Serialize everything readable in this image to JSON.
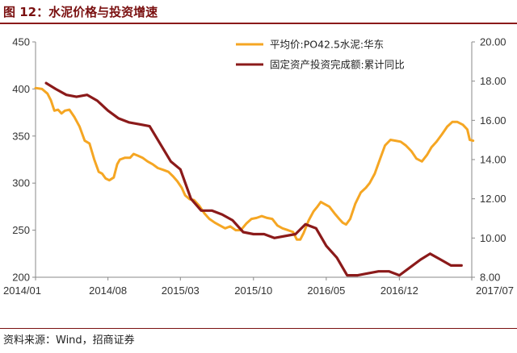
{
  "header": {
    "title": "图 12：水泥价格与投资增速"
  },
  "footer": {
    "source": "资料来源：Wind，招商证券"
  },
  "chart_data": {
    "type": "line",
    "left_axis": {
      "min": 200,
      "max": 450,
      "ticks": [
        "200",
        "250",
        "300",
        "350",
        "400",
        "450"
      ]
    },
    "right_axis": {
      "min": 8.0,
      "max": 20.0,
      "ticks": [
        "8.00",
        "10.00",
        "12.00",
        "14.00",
        "16.00",
        "18.00",
        "20.00"
      ]
    },
    "x_axis": {
      "min": "2014-01",
      "max": "2017-07",
      "ticks": [
        {
          "date": "2014-01",
          "label": "2014/01"
        },
        {
          "date": "2014-08",
          "label": "2014/08"
        },
        {
          "date": "2015-03",
          "label": "2015/03"
        },
        {
          "date": "2015-10",
          "label": "2015/10"
        },
        {
          "date": "2016-05",
          "label": "2016/05"
        },
        {
          "date": "2016-12",
          "label": "2016/12"
        },
        {
          "date": "2017-07",
          "label": "2017/07"
        }
      ]
    },
    "legend_position": "top-right",
    "grid": false,
    "series": [
      {
        "name": "平均价:PO42.5水泥:华东",
        "axis": "left",
        "color": "#f5a623",
        "points": [
          [
            "2014-01-01",
            401
          ],
          [
            "2014-01-20",
            400
          ],
          [
            "2014-02-05",
            395
          ],
          [
            "2014-02-15",
            388
          ],
          [
            "2014-02-25",
            377
          ],
          [
            "2014-03-08",
            378
          ],
          [
            "2014-03-18",
            374
          ],
          [
            "2014-03-28",
            377
          ],
          [
            "2014-04-10",
            378
          ],
          [
            "2014-04-25",
            370
          ],
          [
            "2014-05-10",
            360
          ],
          [
            "2014-05-25",
            345
          ],
          [
            "2014-06-08",
            342
          ],
          [
            "2014-06-22",
            325
          ],
          [
            "2014-07-05",
            312
          ],
          [
            "2014-07-15",
            310
          ],
          [
            "2014-07-25",
            305
          ],
          [
            "2014-08-05",
            303
          ],
          [
            "2014-08-18",
            306
          ],
          [
            "2014-08-28",
            320
          ],
          [
            "2014-09-05",
            325
          ],
          [
            "2014-09-20",
            327
          ],
          [
            "2014-10-05",
            327
          ],
          [
            "2014-10-15",
            331
          ],
          [
            "2014-10-28",
            329
          ],
          [
            "2014-11-10",
            327
          ],
          [
            "2014-11-25",
            323
          ],
          [
            "2014-12-10",
            320
          ],
          [
            "2014-12-25",
            316
          ],
          [
            "2015-01-10",
            314
          ],
          [
            "2015-01-25",
            312
          ],
          [
            "2015-02-08",
            307
          ],
          [
            "2015-02-20",
            302
          ],
          [
            "2015-03-05",
            295
          ],
          [
            "2015-03-15",
            287
          ],
          [
            "2015-03-28",
            283
          ],
          [
            "2015-04-10",
            282
          ],
          [
            "2015-04-25",
            276
          ],
          [
            "2015-05-10",
            268
          ],
          [
            "2015-05-25",
            262
          ],
          [
            "2015-06-10",
            258
          ],
          [
            "2015-06-25",
            255
          ],
          [
            "2015-07-10",
            252
          ],
          [
            "2015-07-25",
            254
          ],
          [
            "2015-08-10",
            250
          ],
          [
            "2015-08-25",
            250
          ],
          [
            "2015-09-10",
            257
          ],
          [
            "2015-09-25",
            262
          ],
          [
            "2015-10-10",
            263
          ],
          [
            "2015-10-25",
            265
          ],
          [
            "2015-11-10",
            263
          ],
          [
            "2015-11-25",
            262
          ],
          [
            "2015-12-10",
            255
          ],
          [
            "2015-12-25",
            252
          ],
          [
            "2016-01-10",
            250
          ],
          [
            "2016-01-25",
            248
          ],
          [
            "2016-02-05",
            240
          ],
          [
            "2016-02-15",
            240
          ],
          [
            "2016-02-25",
            247
          ],
          [
            "2016-03-10",
            260
          ],
          [
            "2016-03-25",
            270
          ],
          [
            "2016-04-05",
            275
          ],
          [
            "2016-04-15",
            280
          ],
          [
            "2016-04-25",
            278
          ],
          [
            "2016-05-10",
            275
          ],
          [
            "2016-05-25",
            268
          ],
          [
            "2016-06-08",
            262
          ],
          [
            "2016-06-18",
            258
          ],
          [
            "2016-06-28",
            256
          ],
          [
            "2016-07-10",
            262
          ],
          [
            "2016-07-25",
            278
          ],
          [
            "2016-08-10",
            290
          ],
          [
            "2016-08-25",
            295
          ],
          [
            "2016-09-05",
            300
          ],
          [
            "2016-09-20",
            310
          ],
          [
            "2016-10-05",
            325
          ],
          [
            "2016-10-20",
            340
          ],
          [
            "2016-11-05",
            346
          ],
          [
            "2016-11-20",
            345
          ],
          [
            "2016-12-05",
            344
          ],
          [
            "2016-12-20",
            340
          ],
          [
            "2017-01-05",
            334
          ],
          [
            "2017-01-20",
            326
          ],
          [
            "2017-02-05",
            323
          ],
          [
            "2017-02-20",
            330
          ],
          [
            "2017-03-05",
            338
          ],
          [
            "2017-03-20",
            344
          ],
          [
            "2017-04-05",
            352
          ],
          [
            "2017-04-20",
            360
          ],
          [
            "2017-05-05",
            365
          ],
          [
            "2017-05-20",
            365
          ],
          [
            "2017-06-05",
            362
          ],
          [
            "2017-06-18",
            357
          ],
          [
            "2017-06-25",
            346
          ],
          [
            "2017-07-05",
            345
          ]
        ]
      },
      {
        "name": "固定资产投资完成额:累计同比",
        "axis": "right",
        "color": "#8b1a1a",
        "points": [
          [
            "2014-02-01",
            17.9
          ],
          [
            "2014-03-01",
            17.6
          ],
          [
            "2014-04-01",
            17.3
          ],
          [
            "2014-05-01",
            17.2
          ],
          [
            "2014-06-01",
            17.3
          ],
          [
            "2014-07-01",
            17.0
          ],
          [
            "2014-08-01",
            16.5
          ],
          [
            "2014-09-01",
            16.1
          ],
          [
            "2014-10-01",
            15.9
          ],
          [
            "2014-11-01",
            15.8
          ],
          [
            "2014-12-01",
            15.7
          ],
          [
            "2015-02-01",
            13.9
          ],
          [
            "2015-03-01",
            13.5
          ],
          [
            "2015-04-01",
            12.0
          ],
          [
            "2015-05-01",
            11.4
          ],
          [
            "2015-06-01",
            11.4
          ],
          [
            "2015-07-01",
            11.2
          ],
          [
            "2015-08-01",
            10.9
          ],
          [
            "2015-09-01",
            10.3
          ],
          [
            "2015-10-01",
            10.2
          ],
          [
            "2015-11-01",
            10.2
          ],
          [
            "2015-12-01",
            10.0
          ],
          [
            "2016-02-01",
            10.2
          ],
          [
            "2016-03-01",
            10.7
          ],
          [
            "2016-04-01",
            10.5
          ],
          [
            "2016-05-01",
            9.6
          ],
          [
            "2016-06-01",
            9.0
          ],
          [
            "2016-07-01",
            8.1
          ],
          [
            "2016-08-01",
            8.1
          ],
          [
            "2016-09-01",
            8.2
          ],
          [
            "2016-10-01",
            8.3
          ],
          [
            "2016-11-01",
            8.3
          ],
          [
            "2016-12-01",
            8.1
          ],
          [
            "2017-02-01",
            8.9
          ],
          [
            "2017-03-01",
            9.2
          ],
          [
            "2017-04-01",
            8.9
          ],
          [
            "2017-05-01",
            8.6
          ],
          [
            "2017-06-01",
            8.6
          ]
        ]
      }
    ]
  }
}
